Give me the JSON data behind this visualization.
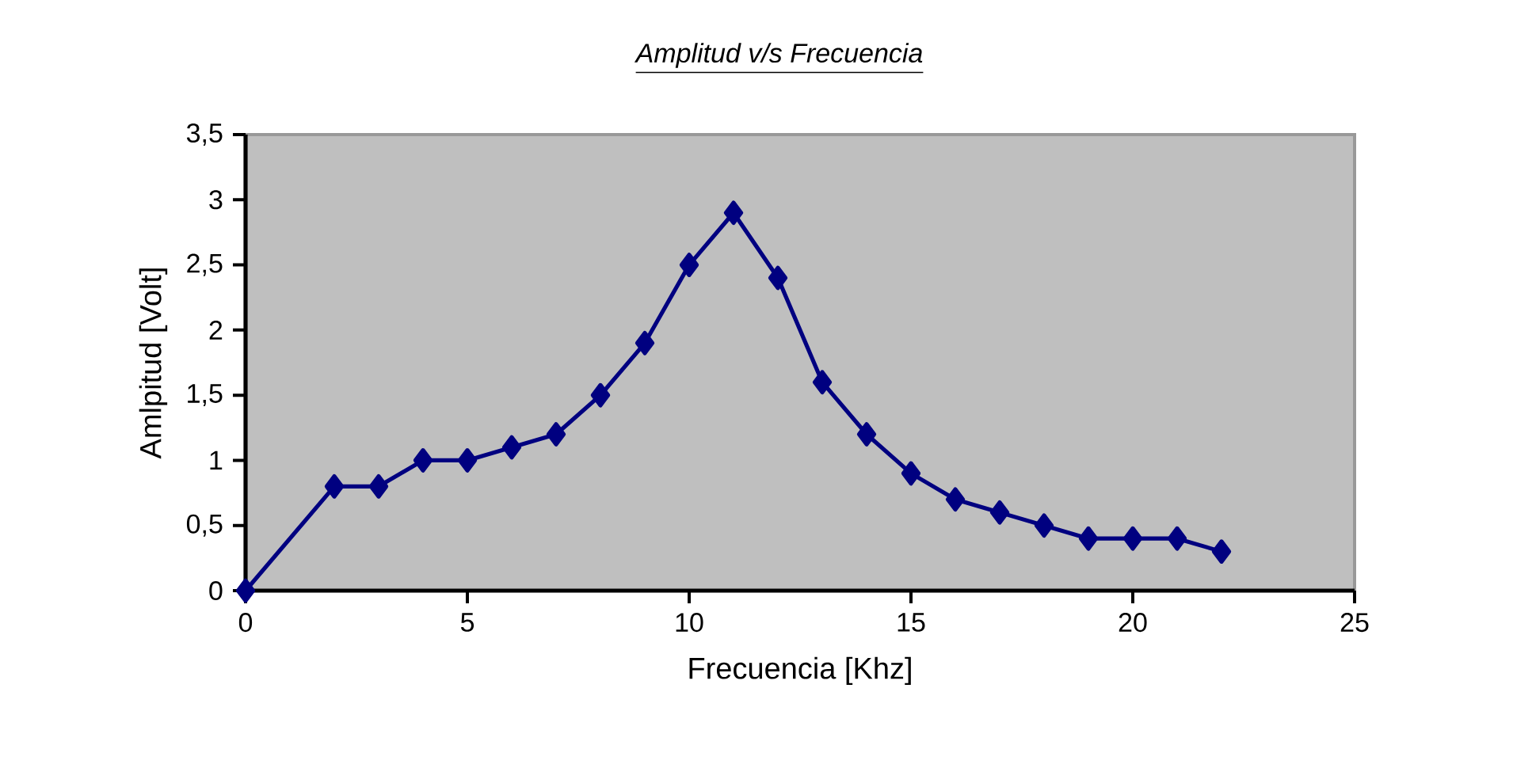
{
  "chart_data": {
    "type": "line",
    "title": "Amplitud v/s Frecuencia",
    "xlabel": "Frecuencia [Khz]",
    "ylabel": "Amlpitud [Volt]",
    "x": [
      0,
      2,
      3,
      4,
      5,
      6,
      7,
      8,
      9,
      10,
      11,
      12,
      13,
      14,
      15,
      16,
      17,
      18,
      19,
      20,
      21,
      22
    ],
    "series": [
      {
        "color": "#000080",
        "values": [
          0,
          0.8,
          0.8,
          1.0,
          1.0,
          1.1,
          1.2,
          1.5,
          1.9,
          2.5,
          2.9,
          2.4,
          1.6,
          1.2,
          0.9,
          0.7,
          0.6,
          0.5,
          0.4,
          0.4,
          0.4,
          0.3
        ]
      }
    ],
    "xlim": [
      0,
      25
    ],
    "xticks": [
      0,
      5,
      10,
      15,
      20,
      25
    ],
    "ylim": [
      0,
      3.5
    ],
    "yticks": [
      0,
      {
        "value": 0.5,
        "label": "0,5"
      },
      1,
      {
        "value": 1.5,
        "label": "1,5"
      },
      2,
      {
        "value": 2.5,
        "label": "2,5"
      },
      3,
      {
        "value": 3.5,
        "label": "3,5"
      }
    ],
    "grid": false,
    "marker": "diamond",
    "line_style": "solid"
  }
}
